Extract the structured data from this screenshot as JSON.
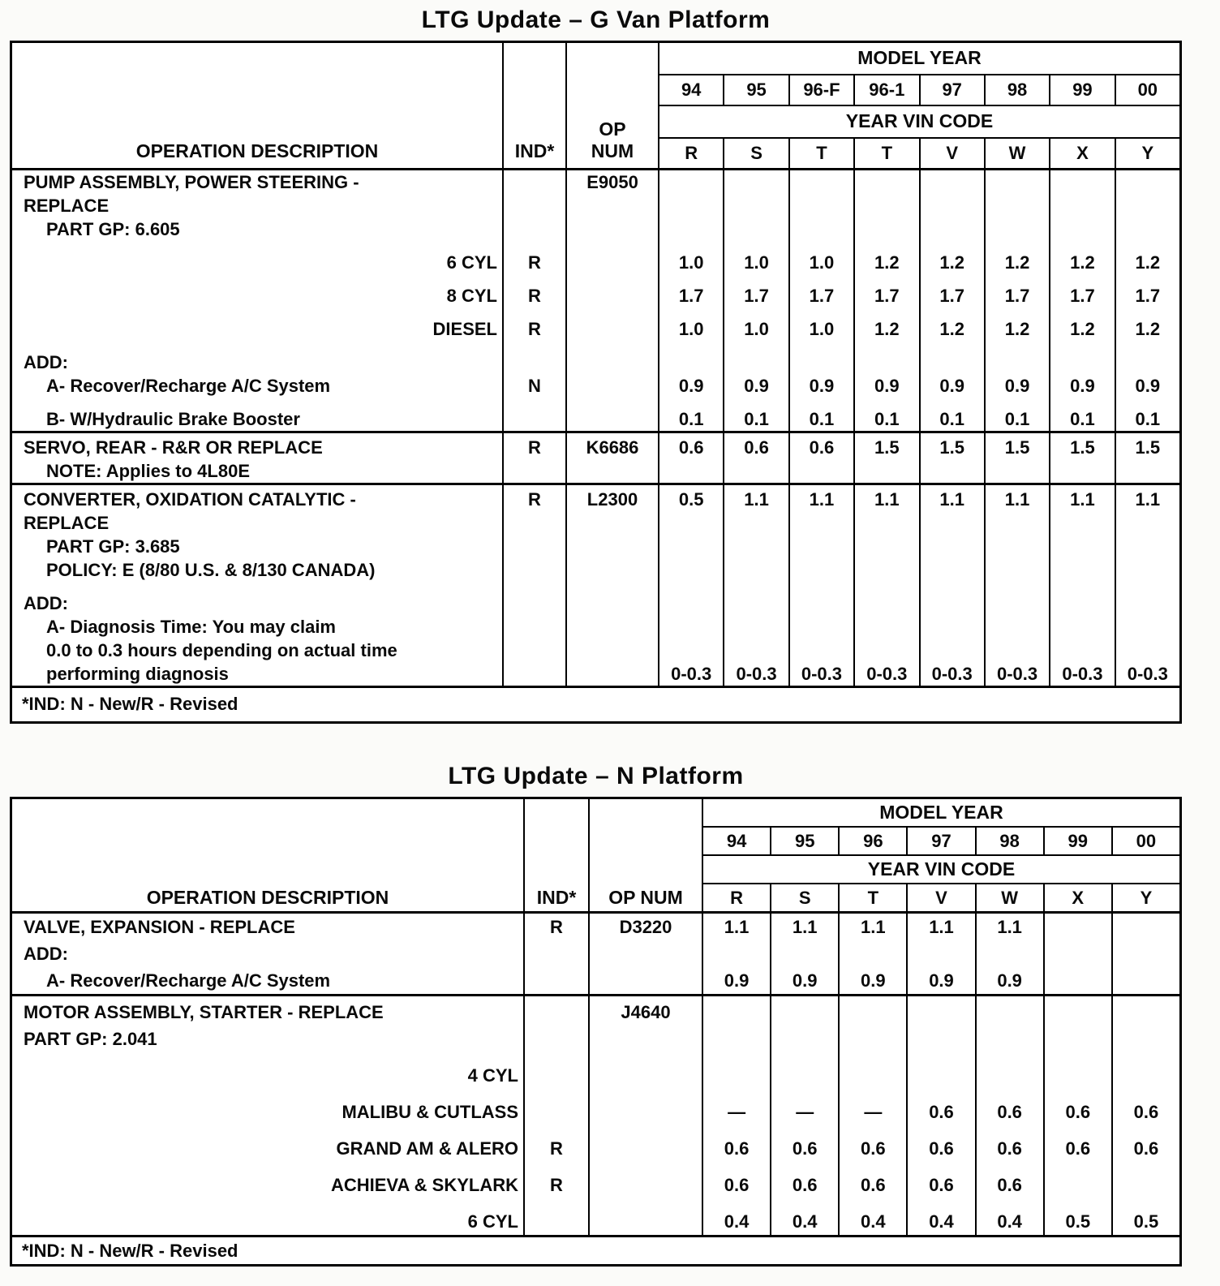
{
  "page": {
    "paper_color": "#ffffff",
    "ink_color": "#000000"
  },
  "table1": {
    "title": "LTG Update – G Van Platform",
    "header": {
      "model_year": "MODEL YEAR",
      "vin_code": "YEAR VIN CODE",
      "op_desc": "OPERATION DESCRIPTION",
      "ind": "IND*",
      "op_num_lines": [
        "OP",
        "NUM"
      ],
      "years": [
        "94",
        "95",
        "96-F",
        "96-1",
        "97",
        "98",
        "99",
        "00"
      ],
      "vins": [
        "R",
        "S",
        "T",
        "T",
        "V",
        "W",
        "X",
        "Y"
      ]
    },
    "rows": [
      {
        "label": "PUMP ASSEMBLY, POWER STEERING -",
        "style": "main",
        "opnum": "E9050"
      },
      {
        "label": "REPLACE",
        "style": "main"
      },
      {
        "label": "PART GP: 6.605",
        "style": "sub"
      },
      {
        "label": "6 CYL",
        "style": "right",
        "ind": "R",
        "gap": true,
        "values": [
          "1.0",
          "1.0",
          "1.0",
          "1.2",
          "1.2",
          "1.2",
          "1.2",
          "1.2"
        ]
      },
      {
        "label": "8 CYL",
        "style": "right",
        "ind": "R",
        "gap": true,
        "values": [
          "1.7",
          "1.7",
          "1.7",
          "1.7",
          "1.7",
          "1.7",
          "1.7",
          "1.7"
        ]
      },
      {
        "label": "DIESEL",
        "style": "right",
        "ind": "R",
        "gap": true,
        "values": [
          "1.0",
          "1.0",
          "1.0",
          "1.2",
          "1.2",
          "1.2",
          "1.2",
          "1.2"
        ]
      },
      {
        "label": "ADD:",
        "style": "main",
        "gap": true
      },
      {
        "label": "A- Recover/Recharge A/C System",
        "style": "sub",
        "ind": "N",
        "values": [
          "0.9",
          "0.9",
          "0.9",
          "0.9",
          "0.9",
          "0.9",
          "0.9",
          "0.9"
        ]
      },
      {
        "label": "B- W/Hydraulic Brake Booster",
        "style": "sub",
        "gap": true,
        "values": [
          "0.1",
          "0.1",
          "0.1",
          "0.1",
          "0.1",
          "0.1",
          "0.1",
          "0.1"
        ]
      },
      {
        "label": "SERVO, REAR - R&R OR REPLACE",
        "style": "main",
        "ind": "R",
        "opnum": "K6686",
        "sep": true,
        "values": [
          "0.6",
          "0.6",
          "0.6",
          "1.5",
          "1.5",
          "1.5",
          "1.5",
          "1.5"
        ]
      },
      {
        "label": "NOTE: Applies to 4L80E",
        "style": "sub"
      },
      {
        "label": "CONVERTER, OXIDATION CATALYTIC -",
        "style": "main",
        "ind": "R",
        "opnum": "L2300",
        "sep": true,
        "values": [
          "0.5",
          "1.1",
          "1.1",
          "1.1",
          "1.1",
          "1.1",
          "1.1",
          "1.1"
        ]
      },
      {
        "label": "REPLACE",
        "style": "main"
      },
      {
        "label": "PART GP: 3.685",
        "style": "sub"
      },
      {
        "label": "POLICY: E (8/80 U.S. & 8/130 CANADA)",
        "style": "sub"
      },
      {
        "label": "ADD:",
        "style": "main",
        "gap": true
      },
      {
        "label": "A- Diagnosis Time: You may claim",
        "style": "sub"
      },
      {
        "label": "0.0 to 0.3 hours depending on actual time",
        "style": "sub"
      },
      {
        "label": "performing diagnosis",
        "style": "sub",
        "values": [
          "0-0.3",
          "0-0.3",
          "0-0.3",
          "0-0.3",
          "0-0.3",
          "0-0.3",
          "0-0.3",
          "0-0.3"
        ]
      }
    ],
    "footer": "*IND: N - New/R - Revised"
  },
  "table2": {
    "title": "LTG Update – N Platform",
    "header": {
      "model_year": "MODEL YEAR",
      "vin_code": "YEAR VIN CODE",
      "op_desc": "OPERATION DESCRIPTION",
      "ind": "IND*",
      "op_num_lines": [
        "OP NUM"
      ],
      "years": [
        "94",
        "95",
        "96",
        "97",
        "98",
        "99",
        "00"
      ],
      "vins": [
        "R",
        "S",
        "T",
        "V",
        "W",
        "X",
        "Y"
      ]
    },
    "rows": [
      {
        "label": "VALVE, EXPANSION - REPLACE",
        "style": "main",
        "ind": "R",
        "opnum": "D3220",
        "values": [
          "1.1",
          "1.1",
          "1.1",
          "1.1",
          "1.1",
          "",
          ""
        ]
      },
      {
        "label": "ADD:",
        "style": "main"
      },
      {
        "label": "A- Recover/Recharge A/C System",
        "style": "sub",
        "values": [
          "0.9",
          "0.9",
          "0.9",
          "0.9",
          "0.9",
          "",
          ""
        ]
      },
      {
        "label": "MOTOR ASSEMBLY, STARTER - REPLACE",
        "style": "main",
        "opnum": "J4640",
        "sep": true
      },
      {
        "label": "PART GP: 2.041",
        "style": "main"
      },
      {
        "label": "4 CYL",
        "style": "right",
        "gap": true
      },
      {
        "label": "MALIBU & CUTLASS",
        "style": "right",
        "gap": true,
        "values": [
          "—",
          "—",
          "—",
          "0.6",
          "0.6",
          "0.6",
          "0.6"
        ]
      },
      {
        "label": "GRAND AM & ALERO",
        "style": "right",
        "ind": "R",
        "gap": true,
        "values": [
          "0.6",
          "0.6",
          "0.6",
          "0.6",
          "0.6",
          "0.6",
          "0.6"
        ]
      },
      {
        "label": "ACHIEVA & SKYLARK",
        "style": "right",
        "ind": "R",
        "gap": true,
        "values": [
          "0.6",
          "0.6",
          "0.6",
          "0.6",
          "0.6",
          "",
          ""
        ]
      },
      {
        "label": "6 CYL",
        "style": "right",
        "gap": true,
        "values": [
          "0.4",
          "0.4",
          "0.4",
          "0.4",
          "0.4",
          "0.5",
          "0.5"
        ]
      }
    ],
    "footer": "*IND: N - New/R - Revised"
  }
}
